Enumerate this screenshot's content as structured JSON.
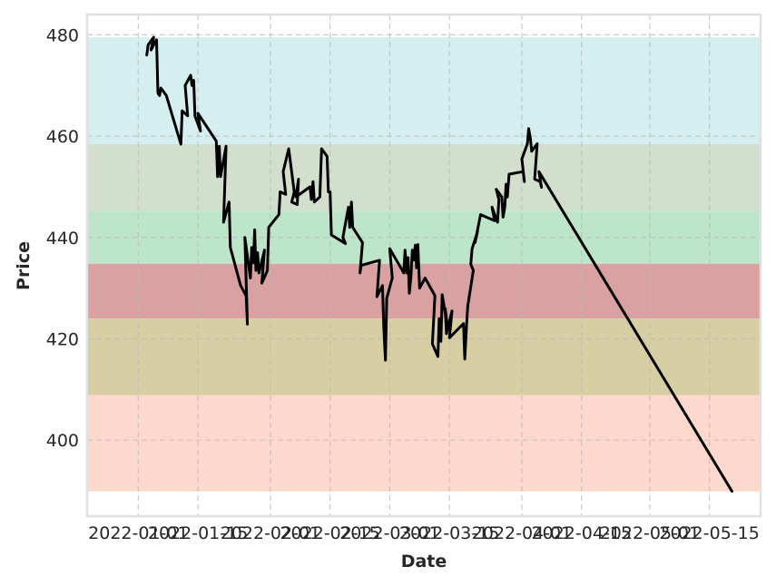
{
  "chart_data": {
    "type": "line",
    "title": "",
    "xlabel": "Date",
    "ylabel": "Price",
    "ylim": [
      385,
      484
    ],
    "xlim": [
      "2021-12-20",
      "2022-05-27"
    ],
    "grid": true,
    "x_ticks": [
      "2022-01-01",
      "2022-01-15",
      "2022-02-01",
      "2022-02-15",
      "2022-03-01",
      "2022-03-15",
      "2022-04-01",
      "2022-04-15",
      "2022-05-01",
      "2022-05-15"
    ],
    "y_ticks": [
      400,
      420,
      440,
      460,
      480
    ],
    "bands": [
      {
        "from": 479.5,
        "to": 458.4,
        "color": "#d5eef0"
      },
      {
        "from": 458.4,
        "to": 445.3,
        "color": "#d3dfcd"
      },
      {
        "from": 445.3,
        "to": 434.8,
        "color": "#bde5c9"
      },
      {
        "from": 434.8,
        "to": 424.0,
        "color": "#d9a1a1"
      },
      {
        "from": 424.0,
        "to": 408.9,
        "color": "#d7cfa3"
      },
      {
        "from": 408.9,
        "to": 389.9,
        "color": "#fdd8cc"
      }
    ],
    "series": [
      {
        "color": "#000000",
        "points": [
          [
            "2022-01-03",
            476
          ],
          [
            "2022-01-03",
            478
          ],
          [
            "2022-01-04",
            479.5
          ],
          [
            "2022-01-04",
            477
          ],
          [
            "2022-01-05",
            479
          ],
          [
            "2022-01-05",
            468.5
          ],
          [
            "2022-01-06",
            468
          ],
          [
            "2022-01-06",
            469.5
          ],
          [
            "2022-01-07",
            468
          ],
          [
            "2022-01-11",
            458.4
          ],
          [
            "2022-01-11",
            465
          ],
          [
            "2022-01-12",
            464
          ],
          [
            "2022-01-12",
            470
          ],
          [
            "2022-01-13",
            472
          ],
          [
            "2022-01-13",
            470
          ],
          [
            "2022-01-14",
            471
          ],
          [
            "2022-01-14",
            464
          ],
          [
            "2022-01-15",
            461
          ],
          [
            "2022-01-15",
            464.5
          ],
          [
            "2022-01-19",
            459
          ],
          [
            "2022-01-19",
            452
          ],
          [
            "2022-01-20",
            458
          ],
          [
            "2022-01-20",
            452
          ],
          [
            "2022-01-21",
            458
          ],
          [
            "2022-01-21",
            443
          ],
          [
            "2022-01-22",
            447
          ],
          [
            "2022-01-22",
            438
          ],
          [
            "2022-01-25",
            430.5
          ],
          [
            "2022-01-26",
            428.5
          ],
          [
            "2022-01-26",
            422.9
          ],
          [
            "2022-01-26",
            440
          ],
          [
            "2022-01-27",
            432
          ],
          [
            "2022-01-27",
            438
          ],
          [
            "2022-01-28",
            435
          ],
          [
            "2022-01-28",
            441.5
          ],
          [
            "2022-01-28",
            433.5
          ],
          [
            "2022-01-29",
            437
          ],
          [
            "2022-01-29",
            433
          ],
          [
            "2022-01-30",
            437.5
          ],
          [
            "2022-01-30",
            431
          ],
          [
            "2022-01-31",
            433.5
          ],
          [
            "2022-01-31",
            442
          ],
          [
            "2022-02-03",
            444.5
          ],
          [
            "2022-02-03",
            449
          ],
          [
            "2022-02-04",
            448.5
          ],
          [
            "2022-02-04",
            453
          ],
          [
            "2022-02-05",
            457.5
          ],
          [
            "2022-02-06",
            449
          ],
          [
            "2022-02-06",
            447
          ],
          [
            "2022-02-07",
            446.5
          ],
          [
            "2022-02-07",
            451.5
          ],
          [
            "2022-02-07",
            448
          ],
          [
            "2022-02-10",
            450
          ],
          [
            "2022-02-10",
            447.5
          ],
          [
            "2022-02-11",
            451
          ],
          [
            "2022-02-11",
            447
          ],
          [
            "2022-02-12",
            448
          ],
          [
            "2022-02-13",
            457.5
          ],
          [
            "2022-02-14",
            456
          ],
          [
            "2022-02-14",
            449
          ],
          [
            "2022-02-15",
            449
          ],
          [
            "2022-02-15",
            440.5
          ],
          [
            "2022-02-18",
            438.8
          ],
          [
            "2022-02-18",
            440
          ],
          [
            "2022-02-19",
            446
          ],
          [
            "2022-02-19",
            442
          ],
          [
            "2022-02-20",
            447
          ],
          [
            "2022-02-20",
            442
          ],
          [
            "2022-02-22",
            439
          ],
          [
            "2022-02-22",
            433
          ],
          [
            "2022-02-22",
            434.5
          ],
          [
            "2022-02-26",
            435.5
          ],
          [
            "2022-02-26",
            428.3
          ],
          [
            "2022-02-27",
            430.5
          ],
          [
            "2022-02-27",
            422
          ],
          [
            "2022-02-28",
            415.8
          ],
          [
            "2022-02-28",
            428
          ],
          [
            "2022-03-01",
            432
          ],
          [
            "2022-03-01",
            437.8
          ],
          [
            "2022-03-04",
            433
          ],
          [
            "2022-03-04",
            437.5
          ],
          [
            "2022-03-05",
            433
          ],
          [
            "2022-03-05",
            436
          ],
          [
            "2022-03-05",
            429
          ],
          [
            "2022-03-06",
            432.5
          ],
          [
            "2022-03-06",
            437.5
          ],
          [
            "2022-03-06",
            435.5
          ],
          [
            "2022-03-07",
            438.5
          ],
          [
            "2022-03-07",
            434
          ],
          [
            "2022-03-07",
            438.6
          ],
          [
            "2022-03-08",
            430
          ],
          [
            "2022-03-09",
            432
          ],
          [
            "2022-03-11",
            428.5
          ],
          [
            "2022-03-11",
            419
          ],
          [
            "2022-03-12",
            416.5
          ],
          [
            "2022-03-12",
            424
          ],
          [
            "2022-03-13",
            419.5
          ],
          [
            "2022-03-13",
            428.7
          ],
          [
            "2022-03-14",
            422
          ],
          [
            "2022-03-14",
            426
          ],
          [
            "2022-03-14",
            421
          ],
          [
            "2022-03-15",
            425.5
          ],
          [
            "2022-03-15",
            420.2
          ],
          [
            "2022-03-18",
            423
          ],
          [
            "2022-03-18",
            416
          ],
          [
            "2022-03-19",
            422.5
          ],
          [
            "2022-03-19",
            426.5
          ],
          [
            "2022-03-20",
            433.5
          ],
          [
            "2022-03-20",
            434.7
          ],
          [
            "2022-03-20",
            437.7
          ],
          [
            "2022-03-21",
            441.2
          ],
          [
            "2022-03-21",
            439
          ],
          [
            "2022-03-22",
            444.5
          ],
          [
            "2022-03-25",
            443.3
          ],
          [
            "2022-03-25",
            446
          ],
          [
            "2022-03-26",
            443
          ],
          [
            "2022-03-26",
            447.5
          ],
          [
            "2022-03-26",
            449.5
          ],
          [
            "2022-03-27",
            448
          ],
          [
            "2022-03-27",
            444
          ],
          [
            "2022-03-28",
            446
          ],
          [
            "2022-03-28",
            450.5
          ],
          [
            "2022-03-28",
            448
          ],
          [
            "2022-03-29",
            452.5
          ],
          [
            "2022-04-01",
            453
          ],
          [
            "2022-04-01",
            451
          ],
          [
            "2022-04-01",
            455.5
          ],
          [
            "2022-04-02",
            458.5
          ],
          [
            "2022-04-02",
            461.5
          ],
          [
            "2022-04-03",
            459.5
          ],
          [
            "2022-04-03",
            457
          ],
          [
            "2022-04-04",
            458.5
          ],
          [
            "2022-04-04",
            451.5
          ],
          [
            "2022-04-05",
            451
          ],
          [
            "2022-04-05",
            449.9
          ],
          [
            "2022-04-05",
            453
          ],
          [
            "2022-05-20",
            389.9
          ]
        ]
      }
    ]
  }
}
